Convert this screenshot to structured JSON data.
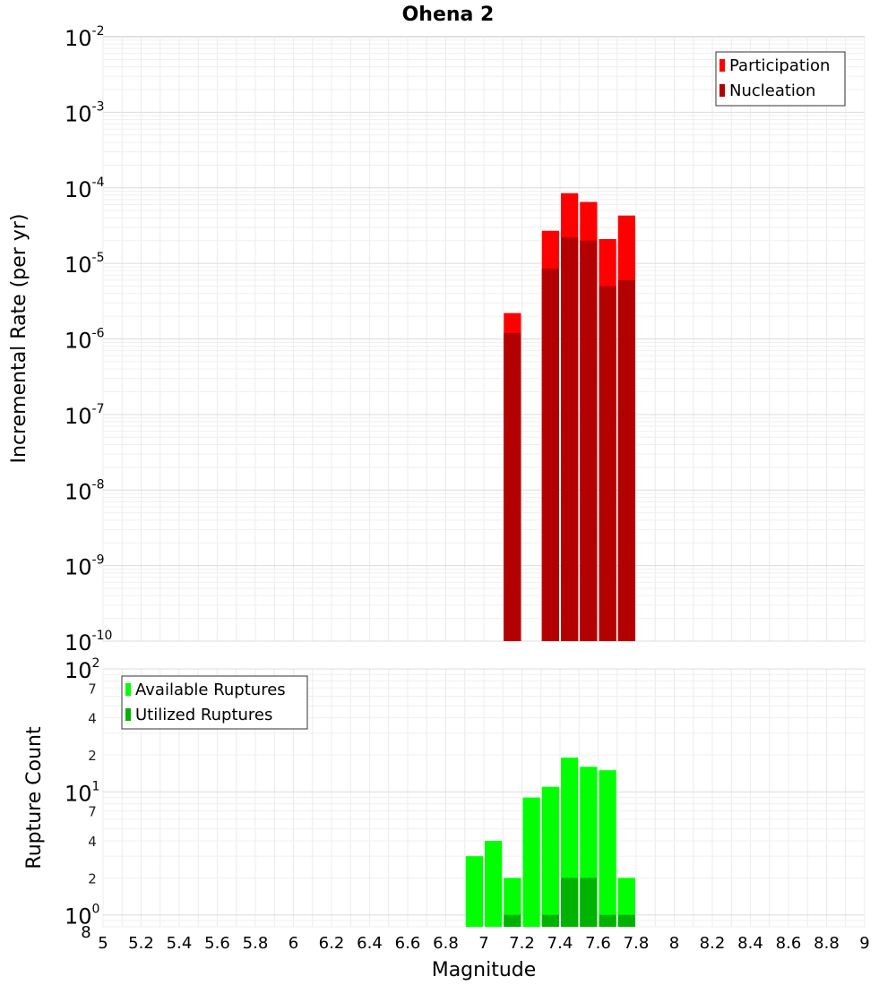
{
  "chart_data": [
    {
      "type": "bar",
      "title": "Ohena 2",
      "ylabel": "Incremental Rate (per yr)",
      "yscale": "log",
      "ylim": [
        1e-10,
        0.01
      ],
      "xlim": [
        5,
        9
      ],
      "y_ticks": [
        {
          "base": "10",
          "exp": "-10",
          "value": 1e-10
        },
        {
          "base": "10",
          "exp": "-9",
          "value": 1e-09
        },
        {
          "base": "10",
          "exp": "-8",
          "value": 1e-08
        },
        {
          "base": "10",
          "exp": "-7",
          "value": 1e-07
        },
        {
          "base": "10",
          "exp": "-6",
          "value": 1e-06
        },
        {
          "base": "10",
          "exp": "-5",
          "value": 1e-05
        },
        {
          "base": "10",
          "exp": "-4",
          "value": 0.0001
        },
        {
          "base": "10",
          "exp": "-3",
          "value": 0.001
        },
        {
          "base": "10",
          "exp": "-2",
          "value": 0.01
        }
      ],
      "legend_position": "top-right",
      "grid": true,
      "series": [
        {
          "name": "Participation",
          "color": "#ff0000",
          "points": [
            {
              "x": 7.15,
              "y": 2.2e-06
            },
            {
              "x": 7.35,
              "y": 2.7e-05
            },
            {
              "x": 7.45,
              "y": 8.5e-05
            },
            {
              "x": 7.55,
              "y": 6.5e-05
            },
            {
              "x": 7.65,
              "y": 2.1e-05
            },
            {
              "x": 7.75,
              "y": 4.3e-05
            }
          ]
        },
        {
          "name": "Nucleation",
          "color": "#b30000",
          "points": [
            {
              "x": 7.15,
              "y": 1.2e-06
            },
            {
              "x": 7.35,
              "y": 8.5e-06
            },
            {
              "x": 7.45,
              "y": 2.2e-05
            },
            {
              "x": 7.55,
              "y": 2e-05
            },
            {
              "x": 7.65,
              "y": 5e-06
            },
            {
              "x": 7.75,
              "y": 6e-06
            }
          ]
        }
      ]
    },
    {
      "type": "bar",
      "xlabel": "Magnitude",
      "ylabel": "Rupture Count",
      "yscale": "log",
      "ylim": [
        0.8,
        100
      ],
      "xlim": [
        5,
        9
      ],
      "x_ticks": [
        "5",
        "5.2",
        "5.4",
        "5.6",
        "5.8",
        "6",
        "6.2",
        "6.4",
        "6.6",
        "6.8",
        "7",
        "7.2",
        "7.4",
        "7.6",
        "7.8",
        "8",
        "8.2",
        "8.4",
        "8.6",
        "8.8",
        "9"
      ],
      "y_major_ticks": [
        {
          "base": "10",
          "exp": "0",
          "value": 1
        },
        {
          "base": "10",
          "exp": "1",
          "value": 10
        },
        {
          "base": "10",
          "exp": "2",
          "value": 100
        }
      ],
      "y_minor_ticks": [
        {
          "label": "8",
          "value": 0.8
        },
        {
          "label": "2",
          "value": 2
        },
        {
          "label": "4",
          "value": 4
        },
        {
          "label": "7",
          "value": 7
        },
        {
          "label": "2",
          "value": 20
        },
        {
          "label": "4",
          "value": 40
        },
        {
          "label": "7",
          "value": 70
        }
      ],
      "legend_position": "top-left",
      "grid": true,
      "series": [
        {
          "name": "Available Ruptures",
          "color": "#00ff00",
          "points": [
            {
              "x": 6.95,
              "y": 3
            },
            {
              "x": 7.05,
              "y": 4
            },
            {
              "x": 7.15,
              "y": 2
            },
            {
              "x": 7.25,
              "y": 9
            },
            {
              "x": 7.35,
              "y": 11
            },
            {
              "x": 7.45,
              "y": 19
            },
            {
              "x": 7.55,
              "y": 16
            },
            {
              "x": 7.65,
              "y": 15
            },
            {
              "x": 7.75,
              "y": 2
            }
          ]
        },
        {
          "name": "Utilized Ruptures",
          "color": "#00b300",
          "points": [
            {
              "x": 7.15,
              "y": 1
            },
            {
              "x": 7.35,
              "y": 1
            },
            {
              "x": 7.45,
              "y": 2
            },
            {
              "x": 7.55,
              "y": 2
            },
            {
              "x": 7.65,
              "y": 1
            },
            {
              "x": 7.75,
              "y": 1
            }
          ]
        }
      ]
    }
  ]
}
